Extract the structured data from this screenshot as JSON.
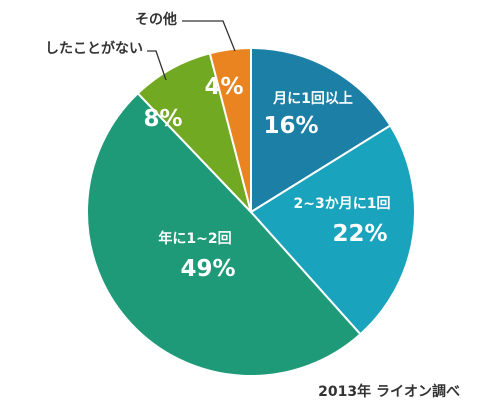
{
  "chart_data": {
    "type": "pie",
    "slices": [
      {
        "label": "月に1回以上",
        "value": 16,
        "display": "16%",
        "color": "#1c7fa6"
      },
      {
        "label": "2~3か月に1回",
        "value": 22,
        "display": "22%",
        "color": "#19a3bd"
      },
      {
        "label": "年に1~2回",
        "value": 49,
        "display": "49%",
        "color": "#1e9a78"
      },
      {
        "label": "したことがない",
        "value": 8,
        "display": "8%",
        "color": "#72a923"
      },
      {
        "label": "その他",
        "value": 4,
        "display": "4%",
        "color": "#ea8420"
      }
    ],
    "start": "12 o'clock",
    "direction": "clockwise"
  },
  "source_note": "2013年 ライオン調べ"
}
